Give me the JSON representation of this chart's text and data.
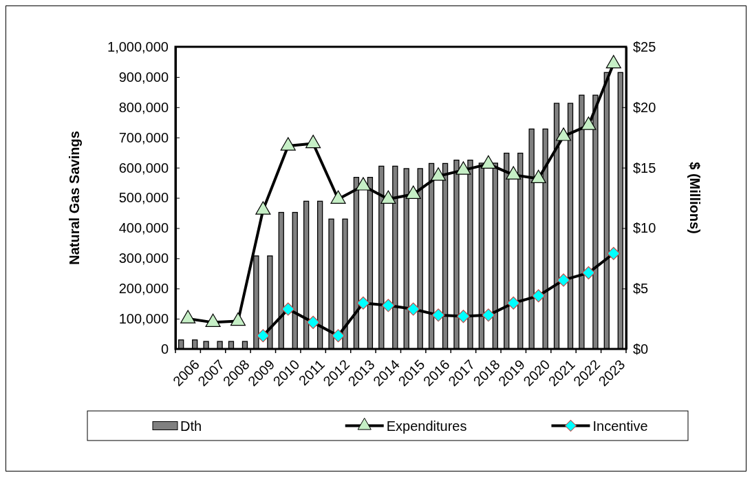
{
  "chart_data": {
    "type": "bar",
    "xlabel": null,
    "ylabel": "Natural Gas Savings",
    "y2label": "$ (Millions)",
    "categories": [
      "2006",
      "2007",
      "2008",
      "2009",
      "2010",
      "2011",
      "2012",
      "2013",
      "2014",
      "2015",
      "2016",
      "2017",
      "2018",
      "2019",
      "2020",
      "2021",
      "2022",
      "2023"
    ],
    "ylim": [
      0,
      1000000
    ],
    "yticks": [
      {
        "value": 0,
        "label": "0"
      },
      {
        "value": 100000,
        "label": "100,000"
      },
      {
        "value": 200000,
        "label": "200,000"
      },
      {
        "value": 300000,
        "label": "300,000"
      },
      {
        "value": 400000,
        "label": "400,000"
      },
      {
        "value": 500000,
        "label": "500,000"
      },
      {
        "value": 600000,
        "label": "600,000"
      },
      {
        "value": 700000,
        "label": "700,000"
      },
      {
        "value": 800000,
        "label": "800,000"
      },
      {
        "value": 900000,
        "label": "900,000"
      },
      {
        "value": 1000000,
        "label": "1,000,000"
      }
    ],
    "y2lim": [
      0,
      25
    ],
    "y2ticks": [
      {
        "value": 0,
        "label": "$0"
      },
      {
        "value": 5,
        "label": "$5"
      },
      {
        "value": 10,
        "label": "$10"
      },
      {
        "value": 15,
        "label": "$15"
      },
      {
        "value": 20,
        "label": "$20"
      },
      {
        "value": 25,
        "label": "$25"
      }
    ],
    "legend": "bottom",
    "grid": false,
    "series": [
      {
        "name": "Dth",
        "color": "#808080",
        "values": [
          30000,
          25000,
          25000,
          308000,
          452000,
          489000,
          430000,
          568000,
          605000,
          597000,
          614000,
          625000,
          615000,
          648000,
          728000,
          813000,
          840000,
          915000
        ]
      },
      {
        "color": "#808080",
        "values": [
          30000,
          25000,
          25000,
          308000,
          452000,
          489000,
          430000,
          568000,
          605000,
          597000,
          614000,
          625000,
          615000,
          648000,
          728000,
          813000,
          840000,
          915000
        ]
      },
      {
        "name": "Expenditures",
        "type": "line",
        "axis": "y2",
        "color": "#000000",
        "marker": "triangle",
        "values": [
          2.5,
          2.2,
          2.3,
          11.5,
          16.8,
          17.0,
          12.4,
          13.5,
          12.4,
          12.8,
          14.3,
          14.8,
          15.3,
          14.4,
          14.1,
          17.6,
          18.5,
          23.6
        ]
      },
      {
        "name": "Incentive",
        "type": "line",
        "axis": "y2",
        "color": "#000000",
        "marker": "diamond",
        "values": [
          null,
          null,
          null,
          1.1,
          3.3,
          2.2,
          1.1,
          3.8,
          3.6,
          3.3,
          2.8,
          2.7,
          2.8,
          3.8,
          4.4,
          5.7,
          6.3,
          7.9
        ]
      }
    ]
  }
}
